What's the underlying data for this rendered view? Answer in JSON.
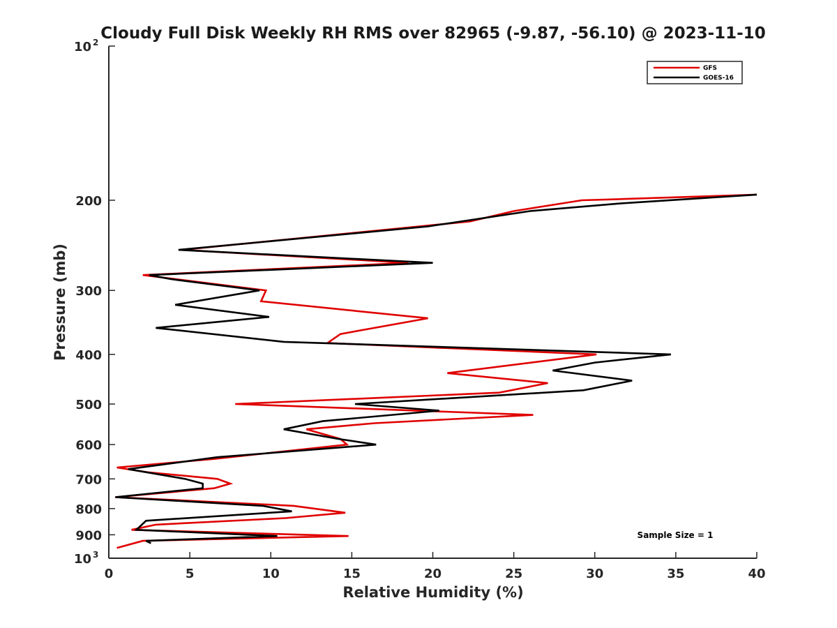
{
  "chart_data": {
    "type": "line",
    "title": "Cloudy Full Disk Weekly RH RMS over 82965 (-9.87, -56.10) @ 2023-11-10",
    "xlabel": "Relative Humidity (%)",
    "ylabel": "Pressure (mb)",
    "xlim": [
      0,
      40
    ],
    "ylim": [
      100,
      1000
    ],
    "y_scale": "log",
    "y_reversed": true,
    "grid": false,
    "legend_position": "top-right",
    "x_ticks": [
      0,
      5,
      10,
      15,
      20,
      25,
      30,
      35,
      40
    ],
    "y_ticks": [
      {
        "value": 100,
        "base": "10",
        "exp": "2"
      },
      {
        "value": 200,
        "label": "200"
      },
      {
        "value": 300,
        "label": "300"
      },
      {
        "value": 400,
        "label": "400"
      },
      {
        "value": 500,
        "label": "500"
      },
      {
        "value": 600,
        "label": "600"
      },
      {
        "value": 700,
        "label": "700"
      },
      {
        "value": 800,
        "label": "800"
      },
      {
        "value": 900,
        "label": "900"
      },
      {
        "value": 1000,
        "base": "10",
        "exp": "3"
      }
    ],
    "annotation": "Sample Size = 1",
    "series": [
      {
        "name": "GFS",
        "color": "#e00000",
        "points": [
          [
            40.0,
            195
          ],
          [
            31.5,
            199
          ],
          [
            29.2,
            200
          ],
          [
            25.0,
            210
          ],
          [
            22.3,
            220
          ],
          [
            4.5,
            250
          ],
          [
            18.5,
            265
          ],
          [
            2.1,
            280
          ],
          [
            9.7,
            300
          ],
          [
            9.4,
            315
          ],
          [
            19.7,
            340
          ],
          [
            14.3,
            365
          ],
          [
            13.5,
            380
          ],
          [
            30.1,
            400
          ],
          [
            20.9,
            435
          ],
          [
            27.1,
            455
          ],
          [
            24.1,
            475
          ],
          [
            7.8,
            500
          ],
          [
            26.2,
            525
          ],
          [
            16.4,
            545
          ],
          [
            12.2,
            560
          ],
          [
            14.3,
            585
          ],
          [
            14.7,
            600
          ],
          [
            6.5,
            640
          ],
          [
            0.5,
            665
          ],
          [
            2.5,
            680
          ],
          [
            6.7,
            700
          ],
          [
            7.5,
            715
          ],
          [
            6.5,
            730
          ],
          [
            0.4,
            760
          ],
          [
            11.4,
            790
          ],
          [
            14.6,
            815
          ],
          [
            10.9,
            835
          ],
          [
            2.9,
            860
          ],
          [
            1.4,
            880
          ],
          [
            14.8,
            905
          ],
          [
            2.1,
            925
          ],
          [
            0.5,
            955
          ]
        ]
      },
      {
        "name": "GOES-16",
        "color": "#000000",
        "points": [
          [
            40.0,
            195
          ],
          [
            31.5,
            203
          ],
          [
            26.0,
            210
          ],
          [
            19.7,
            225
          ],
          [
            4.3,
            250
          ],
          [
            20.0,
            265
          ],
          [
            2.5,
            280
          ],
          [
            3.8,
            285
          ],
          [
            9.3,
            300
          ],
          [
            4.1,
            320
          ],
          [
            9.9,
            338
          ],
          [
            2.9,
            355
          ],
          [
            10.8,
            378
          ],
          [
            34.7,
            400
          ],
          [
            30.0,
            415
          ],
          [
            27.4,
            430
          ],
          [
            32.3,
            450
          ],
          [
            29.3,
            470
          ],
          [
            15.2,
            500
          ],
          [
            20.4,
            515
          ],
          [
            13.2,
            540
          ],
          [
            10.8,
            560
          ],
          [
            14.2,
            585
          ],
          [
            16.5,
            600
          ],
          [
            6.7,
            635
          ],
          [
            1.2,
            670
          ],
          [
            4.7,
            700
          ],
          [
            5.8,
            715
          ],
          [
            5.8,
            730
          ],
          [
            0.4,
            760
          ],
          [
            9.5,
            790
          ],
          [
            11.3,
            810
          ],
          [
            2.3,
            845
          ],
          [
            1.7,
            880
          ],
          [
            10.4,
            905
          ],
          [
            2.3,
            925
          ],
          [
            2.6,
            935
          ]
        ]
      }
    ]
  }
}
